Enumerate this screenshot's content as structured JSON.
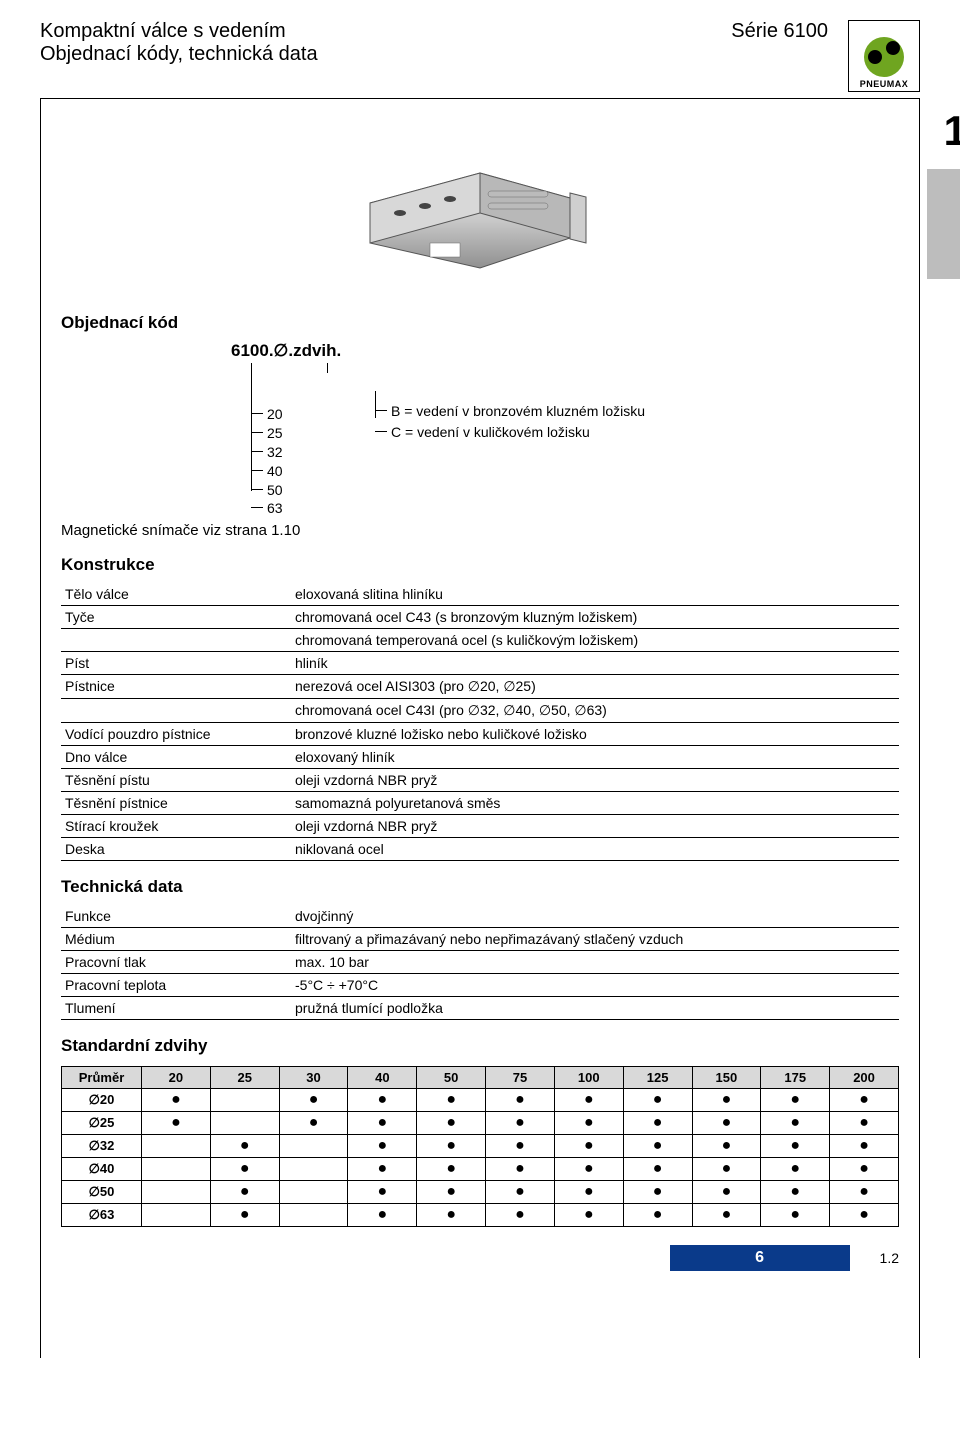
{
  "header": {
    "title_line1": "Kompaktní válce s vedením",
    "title_line2": "Objednací kódy, technická data",
    "series": "Série 6100",
    "logo_text": "PNEUMAX"
  },
  "big_one": "1",
  "order": {
    "heading": "Objednací kód",
    "code": "6100.∅.zdvih.",
    "bores": [
      "20",
      "25",
      "32",
      "40",
      "50",
      "63"
    ],
    "guides": [
      "B = vedení v bronzovém kluzném ložisku",
      "C = vedení v kuličkovém ložisku"
    ],
    "mag_note": "Magnetické snímače viz strana 1.10"
  },
  "construction": {
    "heading": "Konstrukce",
    "rows": [
      {
        "label": "Tělo válce",
        "value": "eloxovaná slitina hliníku"
      },
      {
        "label": "Tyče",
        "value": "chromovaná ocel C43 (s bronzovým kluzným ložiskem)"
      },
      {
        "label": "",
        "value": "chromovaná temperovaná ocel (s kuličkovým ložiskem)"
      },
      {
        "label": "Píst",
        "value": "hliník"
      },
      {
        "label": "Pístnice",
        "value": "nerezová ocel AISI303 (pro ∅20, ∅25)"
      },
      {
        "label": "",
        "value": "chromovaná ocel C43I (pro ∅32, ∅40, ∅50, ∅63)"
      },
      {
        "label": "Vodící pouzdro pístnice",
        "value": "bronzové kluzné ložisko nebo kuličkové ložisko"
      },
      {
        "label": "Dno válce",
        "value": "eloxovaný hliník"
      },
      {
        "label": "Těsnění pístu",
        "value": "oleji vzdorná NBR pryž"
      },
      {
        "label": "Těsnění pístnice",
        "value": "samomazná polyuretanová směs"
      },
      {
        "label": "Stírací kroužek",
        "value": "oleji vzdorná NBR pryž"
      },
      {
        "label": "Deska",
        "value": "niklovaná ocel"
      }
    ]
  },
  "techdata": {
    "heading": "Technická data",
    "rows": [
      {
        "label": "Funkce",
        "value": "dvojčinný"
      },
      {
        "label": "Médium",
        "value": "filtrovaný a přimazávaný nebo nepřimazávaný stlačený vzduch"
      },
      {
        "label": "Pracovní tlak",
        "value": "max. 10 bar"
      },
      {
        "label": "Pracovní teplota",
        "value": "-5°C ÷ +70°C"
      },
      {
        "label": "Tlumení",
        "value": "pružná tlumící podložka"
      }
    ]
  },
  "strokes": {
    "heading": "Standardní zdvihy",
    "col_header": "Průměr",
    "columns": [
      "20",
      "25",
      "30",
      "40",
      "50",
      "75",
      "100",
      "125",
      "150",
      "175",
      "200"
    ],
    "rows": [
      {
        "bore": "∅20",
        "marks": [
          1,
          0,
          1,
          1,
          1,
          1,
          1,
          1,
          1,
          1,
          1
        ]
      },
      {
        "bore": "∅25",
        "marks": [
          1,
          0,
          1,
          1,
          1,
          1,
          1,
          1,
          1,
          1,
          1
        ]
      },
      {
        "bore": "∅32",
        "marks": [
          0,
          1,
          0,
          1,
          1,
          1,
          1,
          1,
          1,
          1,
          1
        ]
      },
      {
        "bore": "∅40",
        "marks": [
          0,
          1,
          0,
          1,
          1,
          1,
          1,
          1,
          1,
          1,
          1
        ]
      },
      {
        "bore": "∅50",
        "marks": [
          0,
          1,
          0,
          1,
          1,
          1,
          1,
          1,
          1,
          1,
          1
        ]
      },
      {
        "bore": "∅63",
        "marks": [
          0,
          1,
          0,
          1,
          1,
          1,
          1,
          1,
          1,
          1,
          1
        ]
      }
    ]
  },
  "footer": {
    "page_num": "6",
    "subpage": "1.2"
  },
  "colors": {
    "accent_green": "#6fa520",
    "header_grey": "#d9d9d9",
    "tab_grey": "#bdbdbd",
    "badge_blue": "#0a3a8a"
  }
}
